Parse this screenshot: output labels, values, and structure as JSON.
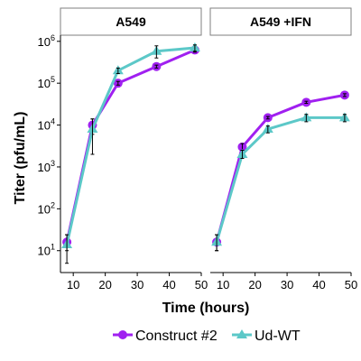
{
  "chart_data": {
    "type": "line",
    "panels": [
      "A549",
      "A549 +IFN"
    ],
    "xlabel": "Time (hours)",
    "ylabel": "Titer (pfu/mL)",
    "xlim": [
      6,
      50
    ],
    "xticks": [
      10,
      20,
      30,
      40,
      50
    ],
    "ylim": [
      3,
      1400000
    ],
    "yscale": "log",
    "yticks": [
      {
        "base": "10",
        "exp": "1",
        "value": 10
      },
      {
        "base": "10",
        "exp": "2",
        "value": 100
      },
      {
        "base": "10",
        "exp": "3",
        "value": 1000
      },
      {
        "base": "10",
        "exp": "4",
        "value": 10000
      },
      {
        "base": "10",
        "exp": "5",
        "value": 100000
      },
      {
        "base": "10",
        "exp": "6",
        "value": 1000000
      }
    ],
    "legend_position": "bottom",
    "series": [
      {
        "name": "Construct #2",
        "color": "#a020f0",
        "marker": "circle",
        "panels": [
          {
            "x": [
              8,
              16,
              24,
              36,
              48
            ],
            "y": [
              16,
              10000,
              100000,
              250000,
              620000
            ],
            "err_low": [
              10,
              6000,
              90000,
              230000,
              550000
            ],
            "err_high": [
              24,
              14000,
              110000,
              270000,
              700000
            ]
          },
          {
            "x": [
              8,
              16,
              24,
              36,
              48
            ],
            "y": [
              16,
              3000,
              15000,
              35000,
              52000
            ],
            "err_low": [
              10,
              2500,
              14000,
              33000,
              48000
            ],
            "err_high": [
              24,
              3600,
              16000,
              37000,
              56000
            ]
          }
        ]
      },
      {
        "name": "Ud-WT",
        "color": "#5cc8c8",
        "marker": "triangle",
        "panels": [
          {
            "x": [
              8,
              16,
              24,
              36,
              48
            ],
            "y": [
              14,
              8000,
              200000,
              580000,
              700000
            ],
            "err_low": [
              5,
              2000,
              170000,
              400000,
              580000
            ],
            "err_high": [
              24,
              14000,
              230000,
              780000,
              820000
            ]
          },
          {
            "x": [
              8,
              16,
              24,
              36,
              48
            ],
            "y": [
              16,
              2000,
              8000,
              15000,
              15000
            ],
            "err_low": [
              10,
              1600,
              6500,
              12000,
              12000
            ],
            "err_high": [
              24,
              2500,
              9500,
              18000,
              18000
            ]
          }
        ]
      }
    ]
  }
}
